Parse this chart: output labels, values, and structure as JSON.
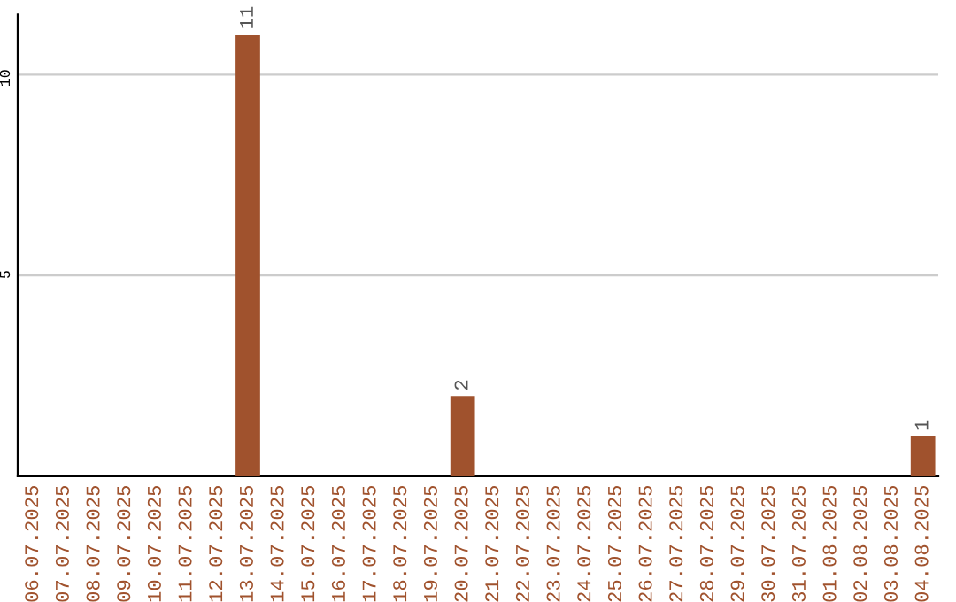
{
  "chart_data": {
    "type": "bar",
    "categories": [
      "06.07.2025",
      "07.07.2025",
      "08.07.2025",
      "09.07.2025",
      "10.07.2025",
      "11.07.2025",
      "12.07.2025",
      "13.07.2025",
      "14.07.2025",
      "15.07.2025",
      "16.07.2025",
      "17.07.2025",
      "18.07.2025",
      "19.07.2025",
      "20.07.2025",
      "21.07.2025",
      "22.07.2025",
      "23.07.2025",
      "24.07.2025",
      "25.07.2025",
      "26.07.2025",
      "27.07.2025",
      "28.07.2025",
      "29.07.2025",
      "30.07.2025",
      "31.07.2025",
      "01.08.2025",
      "02.08.2025",
      "03.08.2025",
      "04.08.2025"
    ],
    "values": [
      0,
      0,
      0,
      0,
      0,
      0,
      0,
      11,
      0,
      0,
      0,
      0,
      0,
      0,
      2,
      0,
      0,
      0,
      0,
      0,
      0,
      0,
      0,
      0,
      0,
      0,
      0,
      0,
      0,
      1
    ],
    "value_labels": [
      null,
      null,
      null,
      null,
      null,
      null,
      null,
      "11",
      null,
      null,
      null,
      null,
      null,
      null,
      "2",
      null,
      null,
      null,
      null,
      null,
      null,
      null,
      null,
      null,
      null,
      null,
      null,
      null,
      null,
      "1"
    ],
    "color": "#a0522d",
    "ylim": [
      0,
      11.5
    ],
    "yticks": [
      5,
      10
    ],
    "grid": "y"
  }
}
